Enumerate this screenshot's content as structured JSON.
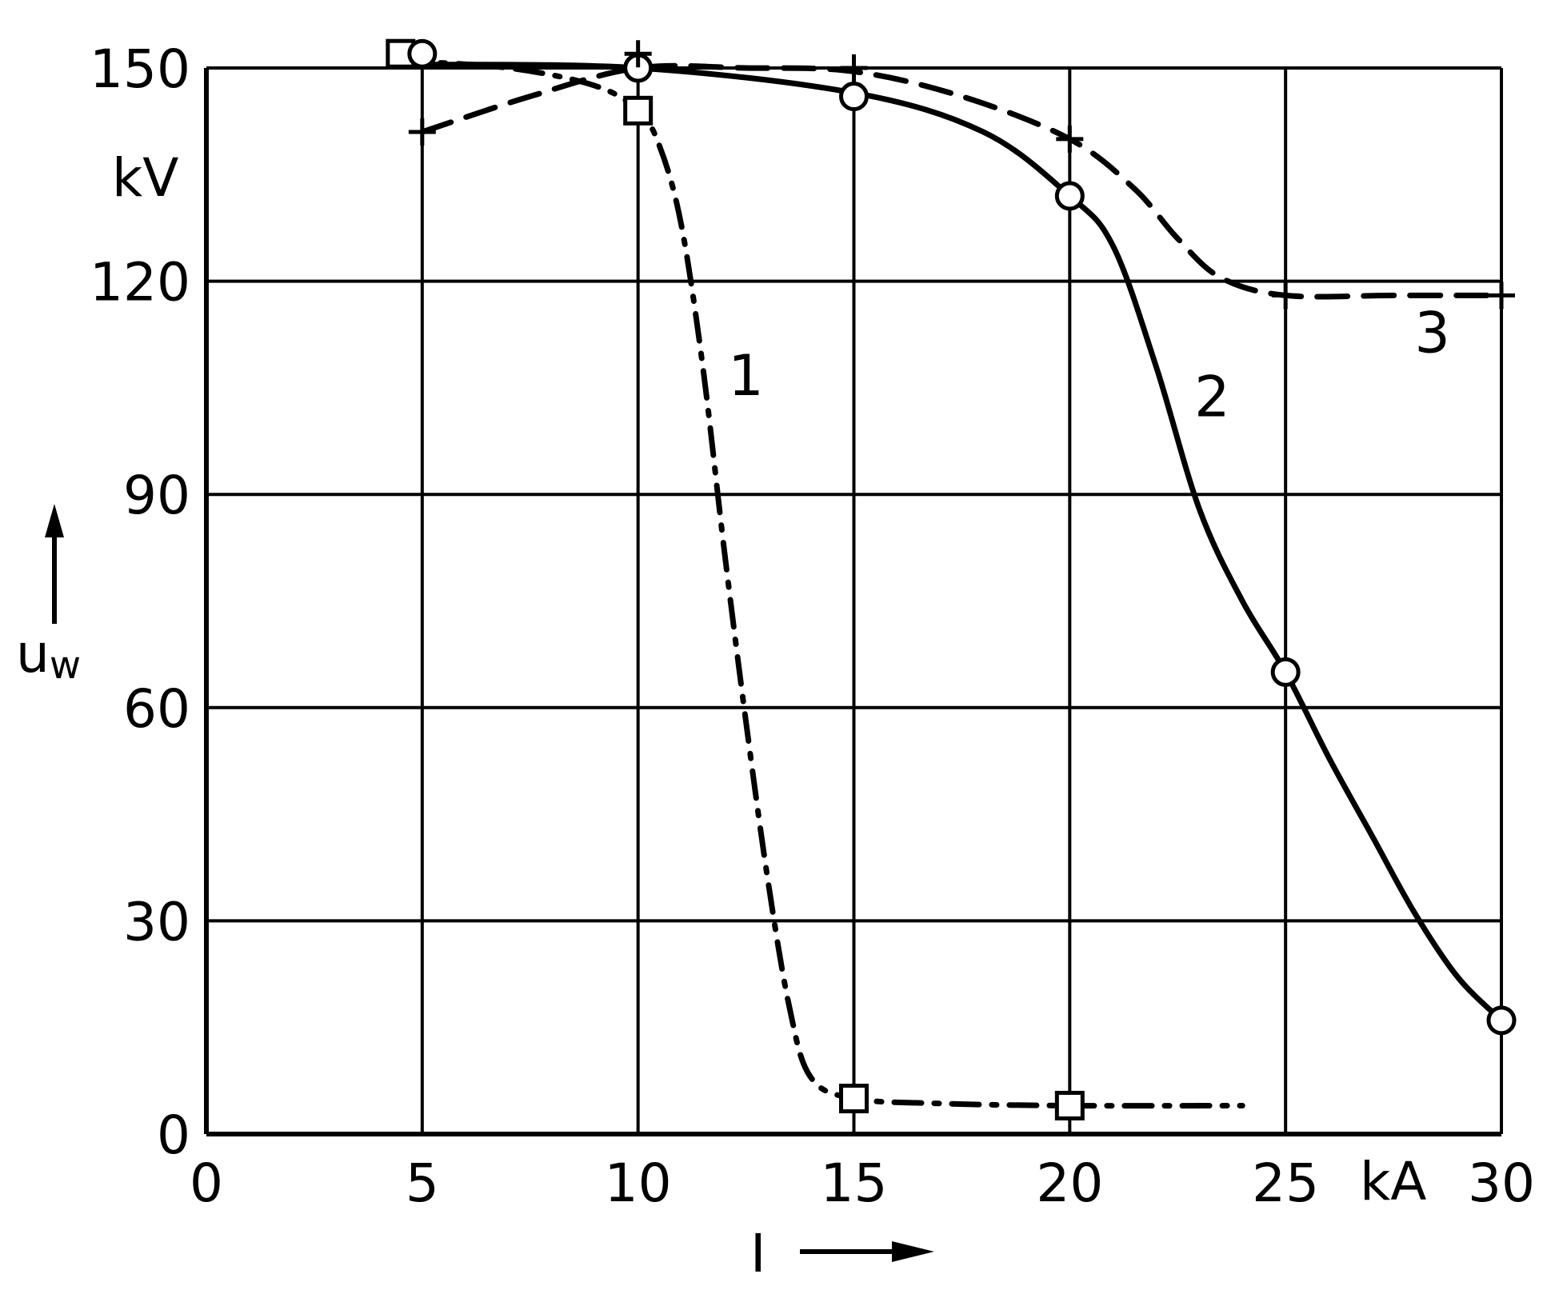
{
  "chart_data": {
    "type": "line",
    "x_axis": {
      "label": "I",
      "unit": "kA",
      "min": 0,
      "max": 30,
      "ticks": [
        0,
        5,
        10,
        15,
        20,
        25,
        30
      ],
      "tick_labels": [
        "0",
        "5",
        "10",
        "15",
        "20",
        "25",
        "30"
      ]
    },
    "y_axis": {
      "label": "u",
      "label_subscript": "w",
      "unit": "kV",
      "min": 0,
      "max": 150,
      "ticks": [
        0,
        30,
        60,
        90,
        120,
        150
      ],
      "tick_labels": [
        "0",
        "30",
        "60",
        "90",
        "120",
        "150"
      ]
    },
    "grid": true,
    "series": [
      {
        "name": "1",
        "line_style": "dash-dot",
        "marker": "square",
        "points": [
          [
            4.5,
            152
          ],
          [
            10,
            144
          ],
          [
            15,
            5
          ],
          [
            20,
            4
          ]
        ],
        "curve": [
          [
            4.5,
            151
          ],
          [
            7,
            150
          ],
          [
            9,
            147.5
          ],
          [
            10,
            144
          ],
          [
            10.5,
            139
          ],
          [
            11,
            128
          ],
          [
            11.5,
            108
          ],
          [
            12,
            82
          ],
          [
            12.5,
            58
          ],
          [
            13,
            36
          ],
          [
            13.5,
            18
          ],
          [
            14,
            8
          ],
          [
            15,
            5
          ],
          [
            17,
            4.3
          ],
          [
            20,
            4
          ],
          [
            24,
            4
          ]
        ]
      },
      {
        "name": "2",
        "line_style": "solid",
        "marker": "circle",
        "points": [
          [
            5,
            152
          ],
          [
            10,
            150
          ],
          [
            15,
            146
          ],
          [
            20,
            132
          ],
          [
            25,
            65
          ],
          [
            30,
            16
          ]
        ],
        "curve": [
          [
            5,
            150.5
          ],
          [
            10,
            150
          ],
          [
            15,
            146.5
          ],
          [
            18,
            141
          ],
          [
            20,
            132
          ],
          [
            21,
            125
          ],
          [
            22,
            108
          ],
          [
            23,
            88
          ],
          [
            24,
            75
          ],
          [
            25,
            65
          ],
          [
            26,
            53
          ],
          [
            27,
            42
          ],
          [
            28,
            31
          ],
          [
            29,
            22
          ],
          [
            30,
            16
          ]
        ]
      },
      {
        "name": "3",
        "line_style": "dashed",
        "marker": "plus",
        "points": [
          [
            5,
            141
          ],
          [
            10,
            152
          ],
          [
            15,
            150
          ],
          [
            20,
            140
          ],
          [
            25,
            118
          ],
          [
            30,
            118
          ]
        ],
        "curve": [
          [
            5,
            141
          ],
          [
            7.5,
            146
          ],
          [
            10,
            150
          ],
          [
            12.5,
            150
          ],
          [
            15,
            149.5
          ],
          [
            17.5,
            146
          ],
          [
            20,
            140
          ],
          [
            21.5,
            133
          ],
          [
            22.5,
            126
          ],
          [
            23.5,
            120.5
          ],
          [
            25,
            118
          ],
          [
            27.5,
            118
          ],
          [
            30,
            118
          ]
        ]
      }
    ]
  }
}
